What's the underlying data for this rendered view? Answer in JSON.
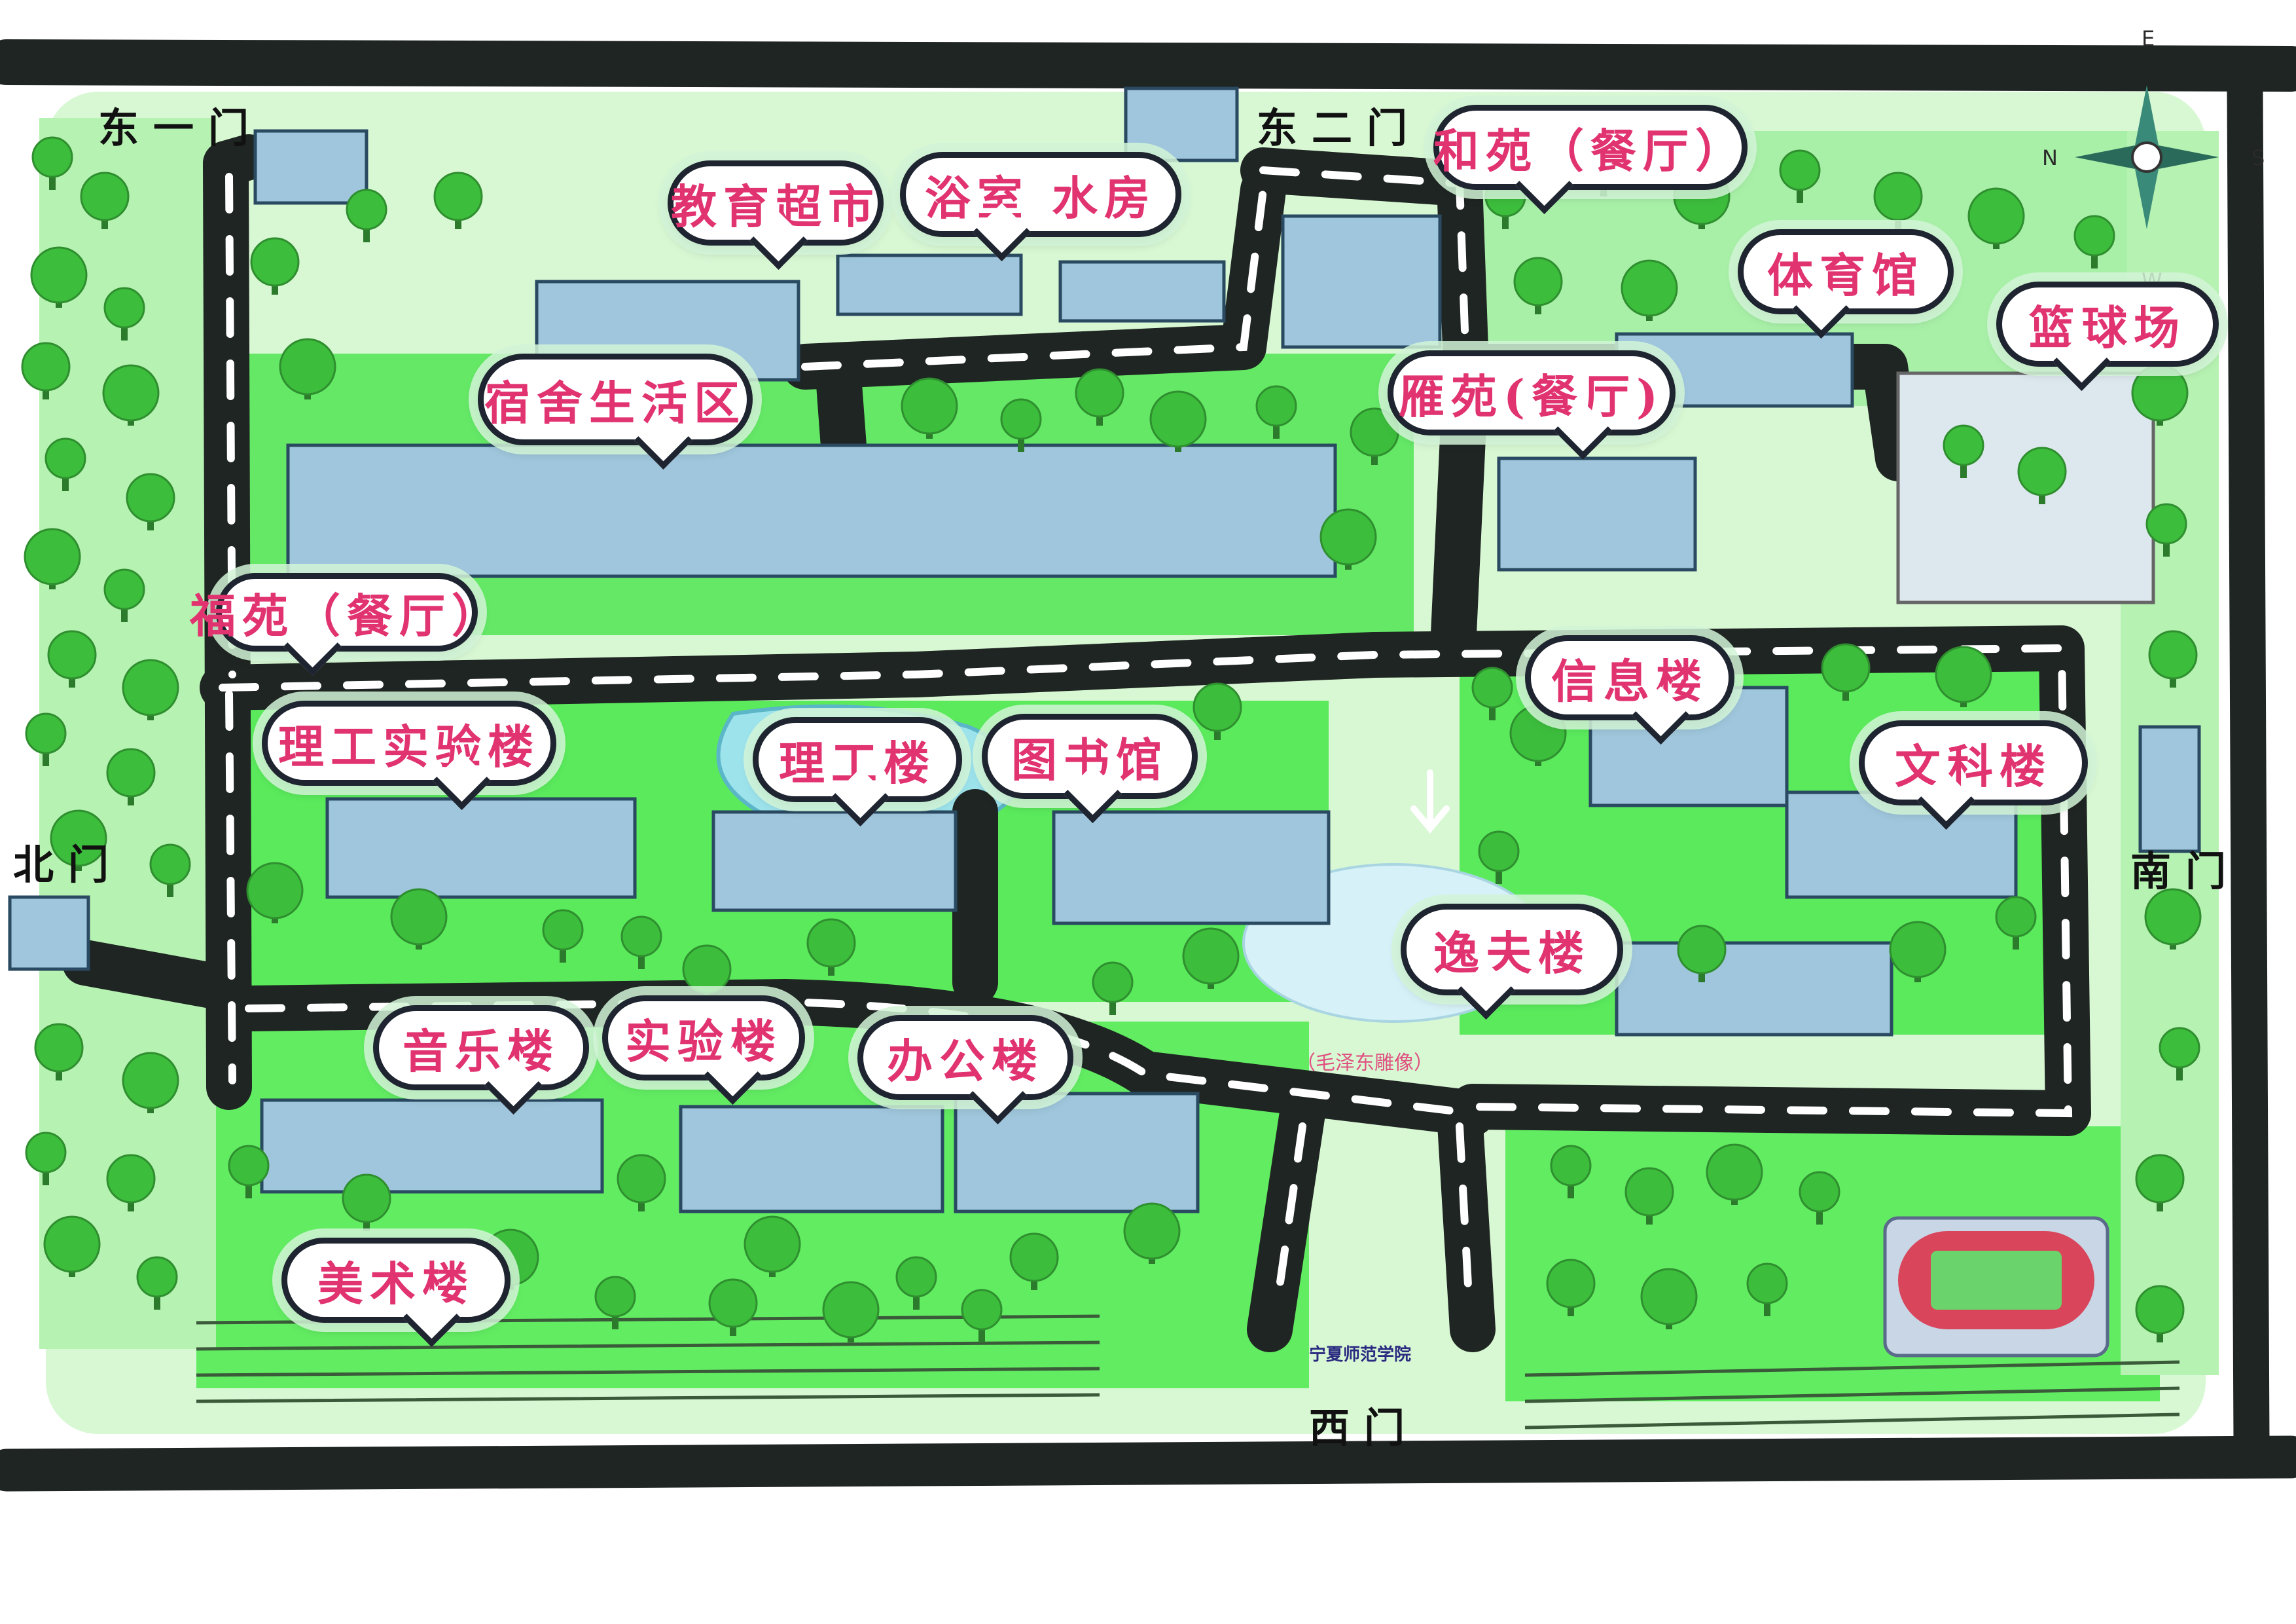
{
  "map": {
    "colors": {
      "road": "#1f2522",
      "road_dash": "#ffffff",
      "grass": "#55e955",
      "tree": "#3cbd3c",
      "tree_trunk": "#2c7a2c",
      "building": "#9fc6dc",
      "water": "#aee6f0",
      "label_text": "#e0336f",
      "track": "#d9455b",
      "field": "#6bd36b"
    },
    "compass": {
      "n": "N",
      "e": "E",
      "s": "S",
      "w": "W"
    },
    "gates": {
      "east1": "东一门",
      "east2": "东二门",
      "north": "北门",
      "south": "南门",
      "west": "西门"
    },
    "labels": {
      "edu_store": "教育超市",
      "bath": "浴室 水房",
      "heyuan": "和苑（餐厅）",
      "gym": "体育馆",
      "basketball": "篮球场",
      "dorm": "宿舍生活区",
      "yanyuan": "雁苑(餐厅)",
      "fuyuan": "福苑（餐厅）",
      "info": "信息楼",
      "science_lab": "理工实验楼",
      "science": "理工楼",
      "library": "图书馆",
      "liberal_arts": "文科楼",
      "yifu": "逸夫楼",
      "music": "音乐楼",
      "lab": "实验楼",
      "office": "办公楼",
      "art": "美术楼"
    },
    "statue": "（毛泽东雕像）",
    "campus_sign": "宁夏师范学院"
  }
}
